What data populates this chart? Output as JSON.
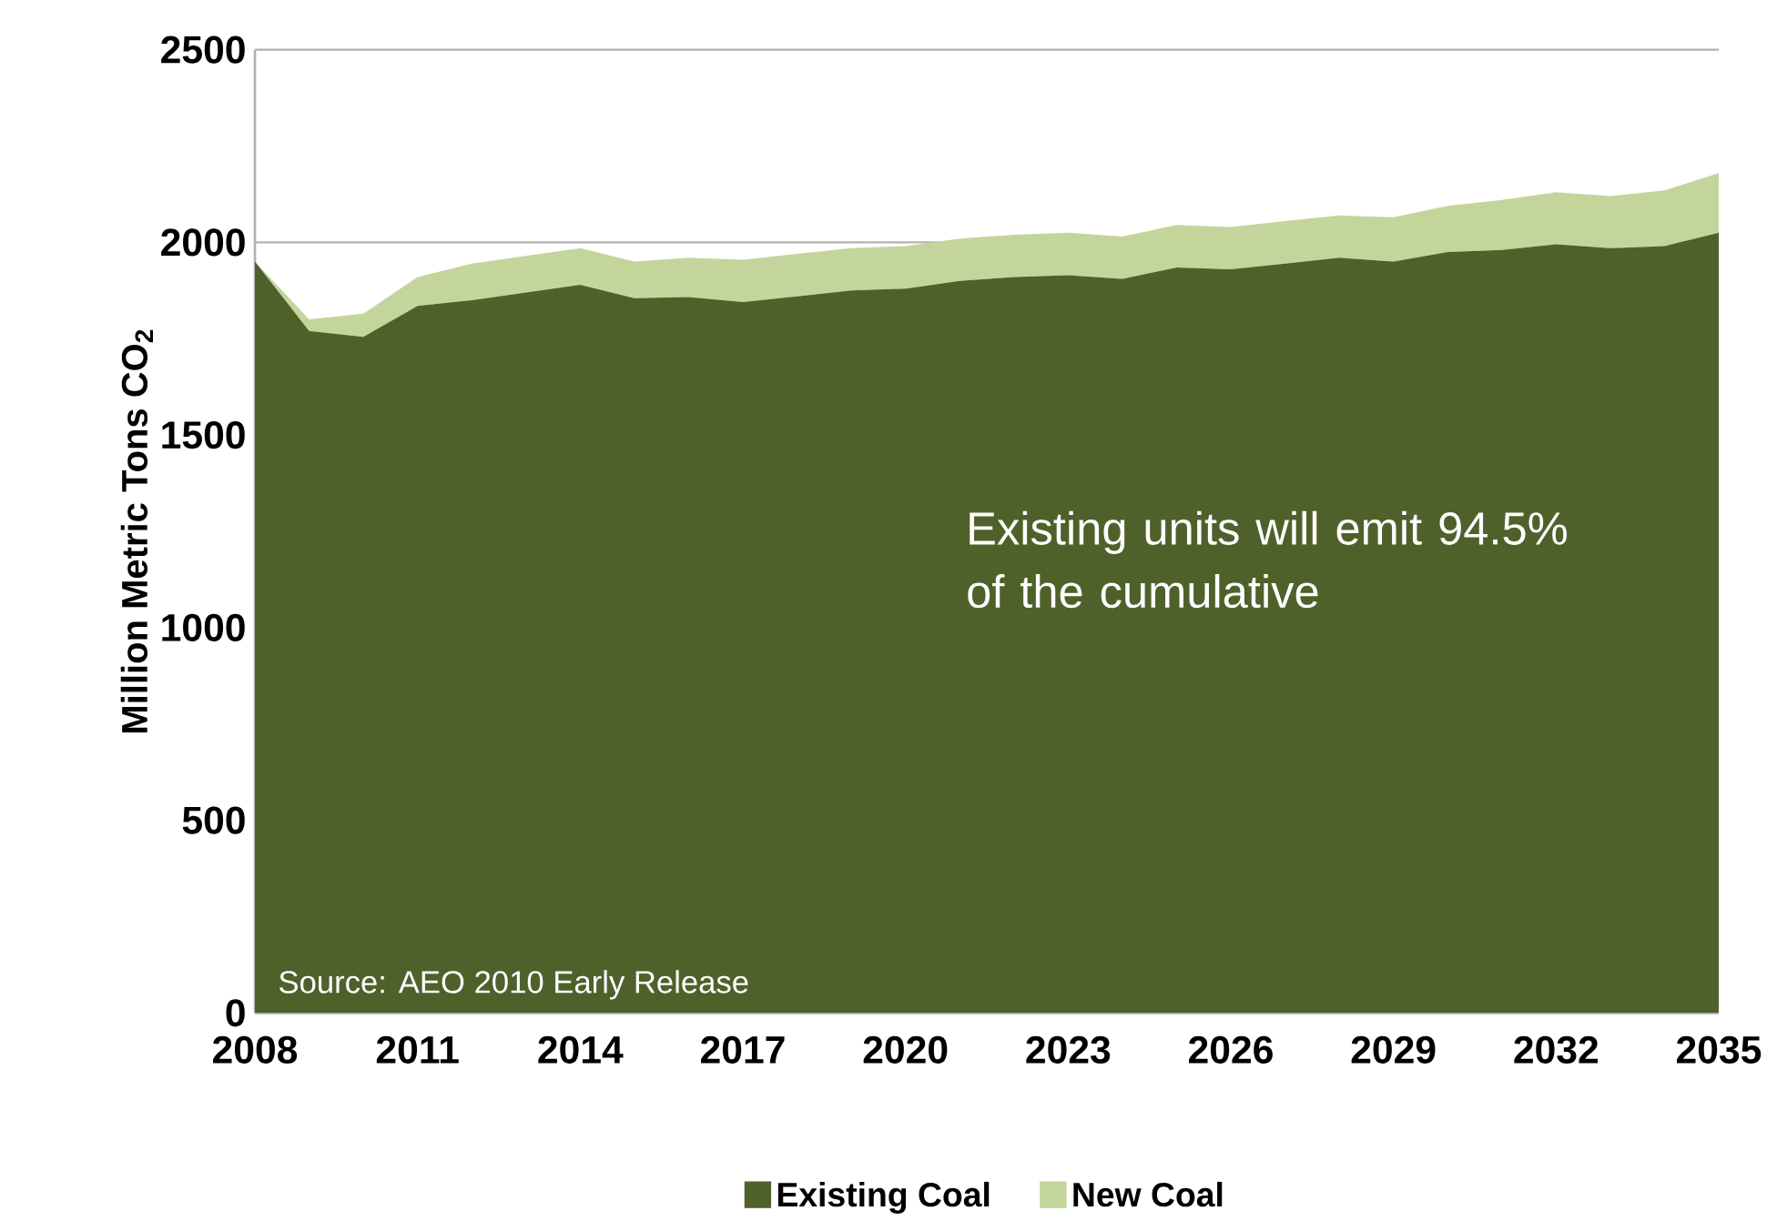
{
  "chart_data": {
    "type": "area",
    "stacked": true,
    "ylabel": "Million Metric Tons CO$_{2}$",
    "x": [
      2008,
      2009,
      2010,
      2011,
      2012,
      2013,
      2014,
      2015,
      2016,
      2017,
      2018,
      2019,
      2020,
      2021,
      2022,
      2023,
      2024,
      2025,
      2026,
      2027,
      2028,
      2029,
      2030,
      2031,
      2032,
      2033,
      2034,
      2035
    ],
    "series": [
      {
        "name": "Existing Coal",
        "color": "#4f612b",
        "values": [
          1950,
          1770,
          1755,
          1835,
          1850,
          1870,
          1890,
          1855,
          1858,
          1845,
          1860,
          1875,
          1880,
          1900,
          1910,
          1915,
          1905,
          1935,
          1930,
          1945,
          1960,
          1950,
          1975,
          1980,
          1995,
          1985,
          1990,
          2025
        ]
      },
      {
        "name": "New Coal",
        "color": "#c4d59c",
        "values": [
          0,
          30,
          60,
          75,
          95,
          95,
          95,
          95,
          102,
          110,
          110,
          110,
          110,
          110,
          110,
          110,
          110,
          110,
          110,
          110,
          110,
          115,
          120,
          130,
          135,
          135,
          145,
          155
        ]
      }
    ],
    "xlim": [
      2008,
      2035
    ],
    "ylim": [
      0,
      2500
    ],
    "xticks": [
      2008,
      2011,
      2014,
      2017,
      2020,
      2023,
      2026,
      2029,
      2032,
      2035
    ],
    "yticks": [
      0,
      500,
      1000,
      1500,
      2000,
      2500
    ],
    "grid": "y",
    "legend": "bottom",
    "annotations": [
      "Existing units will emit 94.5% of the cumulative",
      "Source: AEO 2010 Early Release"
    ]
  }
}
